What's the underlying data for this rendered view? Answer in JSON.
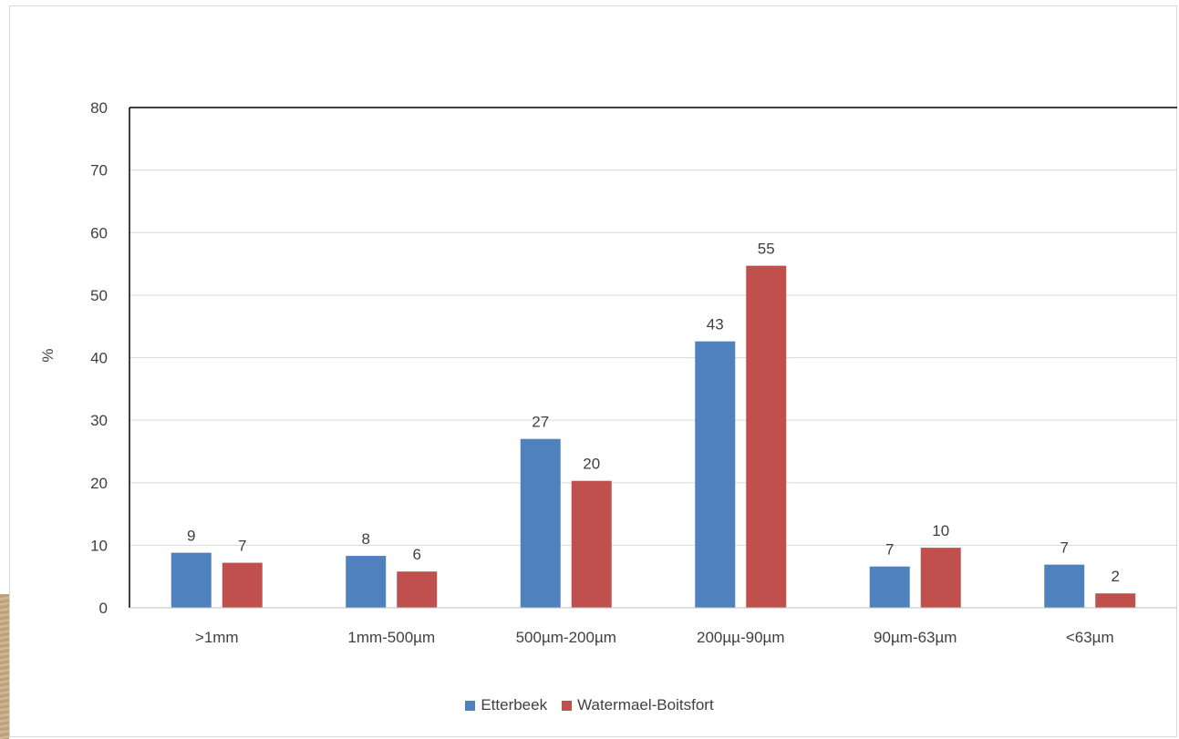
{
  "chart_data": {
    "type": "bar",
    "title": "",
    "xlabel": "",
    "ylabel": "%",
    "ylim": [
      0,
      80
    ],
    "yticks": [
      0,
      10,
      20,
      30,
      40,
      50,
      60,
      70,
      80
    ],
    "categories": [
      ">1mm",
      "1mm-500µm",
      "500µm-200µm",
      "200µµ-90µm",
      "90µm-63µm",
      "<63µm"
    ],
    "series": [
      {
        "name": "Etterbeek",
        "color": "#4f81bd",
        "values": [
          8.8,
          8.3,
          27.0,
          42.6,
          6.6,
          6.9
        ],
        "labels": [
          "9",
          "8",
          "27",
          "43",
          "7",
          "7"
        ]
      },
      {
        "name": "Watermael-Boitsfort",
        "color": "#c0504d",
        "values": [
          7.2,
          5.8,
          20.3,
          54.7,
          9.6,
          2.3
        ],
        "labels": [
          "7",
          "6",
          "20",
          "55",
          "10",
          "2"
        ]
      }
    ],
    "grid": true,
    "legend_position": "bottom"
  }
}
